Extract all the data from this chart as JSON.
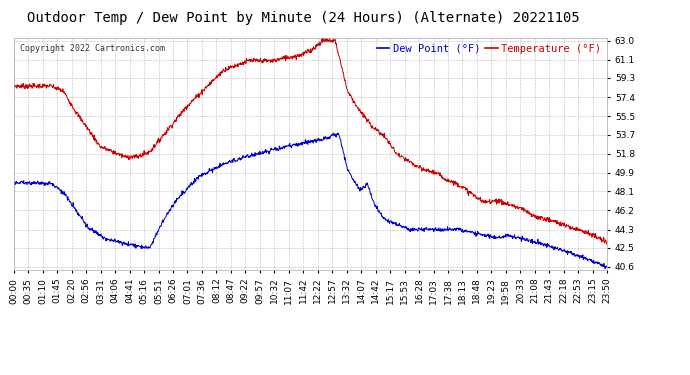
{
  "title": "Outdoor Temp / Dew Point by Minute (24 Hours) (Alternate) 20221105",
  "copyright": "Copyright 2022 Cartronics.com",
  "legend_dew": "Dew Point (°F)",
  "legend_temp": "Temperature (°F)",
  "yticks": [
    40.6,
    42.5,
    44.3,
    46.2,
    48.1,
    49.9,
    51.8,
    53.7,
    55.5,
    57.4,
    59.3,
    61.1,
    63.0
  ],
  "ymin": 40.6,
  "ymax": 63.0,
  "temp_color": "#cc0000",
  "dew_color": "#0000cc",
  "bg_color": "#ffffff",
  "grid_color": "#bbbbbb",
  "title_fontsize": 10,
  "tick_fontsize": 6.5,
  "n_points": 1440,
  "x_tick_labels": [
    "00:00",
    "00:35",
    "01:10",
    "01:45",
    "02:20",
    "02:56",
    "03:31",
    "04:06",
    "04:41",
    "05:16",
    "05:51",
    "06:26",
    "07:01",
    "07:36",
    "08:12",
    "08:47",
    "09:22",
    "09:57",
    "10:32",
    "11:07",
    "11:42",
    "12:22",
    "12:57",
    "13:32",
    "14:07",
    "14:42",
    "15:17",
    "15:53",
    "16:28",
    "17:03",
    "17:38",
    "18:13",
    "18:48",
    "19:23",
    "19:58",
    "20:33",
    "21:08",
    "21:43",
    "22:18",
    "22:53",
    "23:15",
    "23:50"
  ]
}
